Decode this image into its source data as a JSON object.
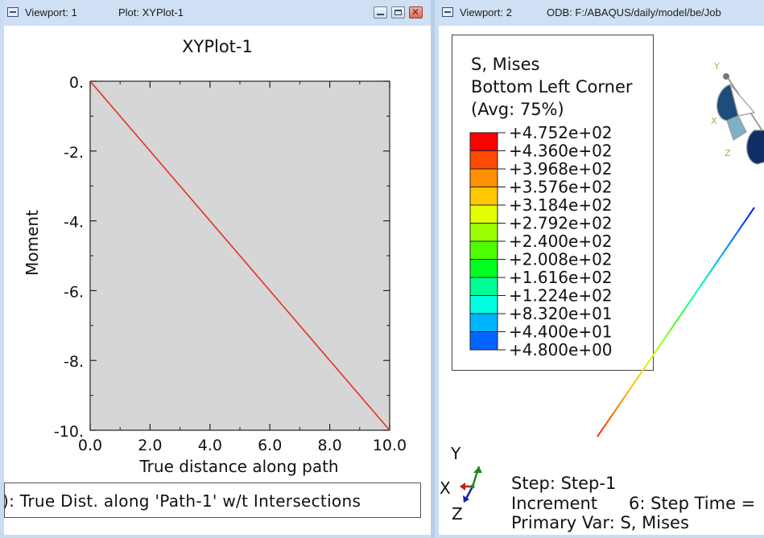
{
  "viewport1": {
    "title_label": "Viewport: 1",
    "plot_label": "Plot: XYPlot-1",
    "minimize": "minimize",
    "maximize": "maximize",
    "close": "close",
    "plot_title": "XYPlot-1",
    "legend_text": "): True Dist. along 'Path-1' w/t Intersections"
  },
  "chart_data": {
    "type": "line",
    "title": "XYPlot-1",
    "xlabel": "True distance along path",
    "ylabel": "Moment",
    "xlim": [
      0,
      10
    ],
    "ylim": [
      -10,
      0
    ],
    "x_ticks": [
      "0.0",
      "2.0",
      "4.0",
      "6.0",
      "8.0",
      "10.0"
    ],
    "y_ticks": [
      "0.",
      "-2.",
      "-4.",
      "-6.",
      "-8.",
      "-10."
    ],
    "grid": false,
    "series": [
      {
        "x": [
          0,
          10
        ],
        "y": [
          0,
          -10
        ],
        "color": "#e0322a"
      }
    ],
    "plot_background": "#d6d6d6"
  },
  "viewport2": {
    "title_label": "Viewport: 2",
    "odb_label": "ODB: F:/ABAQUS/daily/model/be/Job",
    "legend": {
      "title_lines": [
        "S, Mises",
        "Bottom Left Corner",
        "(Avg: 75%)"
      ],
      "values": [
        "+4.752e+02",
        "+4.360e+02",
        "+3.968e+02",
        "+3.576e+02",
        "+3.184e+02",
        "+2.792e+02",
        "+2.400e+02",
        "+2.008e+02",
        "+1.616e+02",
        "+1.224e+02",
        "+8.320e+01",
        "+4.400e+01",
        "+4.800e+00"
      ],
      "colors": [
        "#ff0000",
        "#ff4a00",
        "#ff9100",
        "#ffc800",
        "#e1ff00",
        "#9aff00",
        "#4dff00",
        "#00ff20",
        "#00ff95",
        "#00ffe1",
        "#00b4ff",
        "#0064ff",
        "#0000ff"
      ]
    },
    "triad": {
      "y": "Y",
      "x": "X",
      "z": "Z"
    },
    "orient_triad": {
      "y": "Y",
      "x": "X",
      "z": "Z"
    },
    "status": {
      "step": "Step: Step-1",
      "increment": "Increment",
      "step_time": "6: Step Time =",
      "primary_var": "Primary Var: S, Mises"
    }
  }
}
